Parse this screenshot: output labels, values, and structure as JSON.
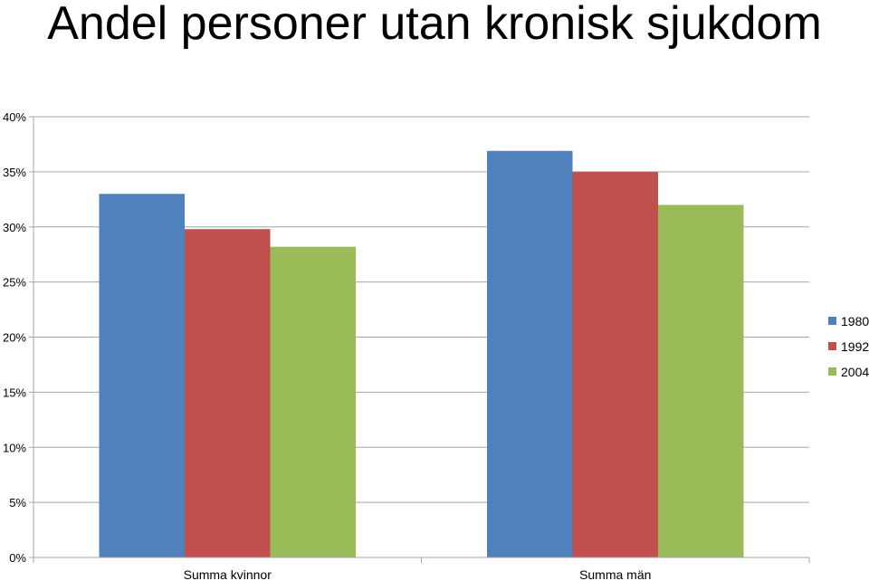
{
  "chart_data": {
    "type": "bar",
    "title": "Andel personer utan kronisk sjukdom",
    "xlabel": "",
    "ylabel": "",
    "categories": [
      "Summa kvinnor",
      "Summa män"
    ],
    "series": [
      {
        "name": "1980",
        "values": [
          0.33,
          0.369
        ],
        "color": "#4F81BD"
      },
      {
        "name": "1992",
        "values": [
          0.298,
          0.35
        ],
        "color": "#C0504D"
      },
      {
        "name": "2004",
        "values": [
          0.282,
          0.32
        ],
        "color": "#9BBB59"
      }
    ],
    "ylim": [
      0,
      0.4
    ],
    "yticks": [
      {
        "value": 0,
        "label": "0%"
      },
      {
        "value": 0.05,
        "label": "5%"
      },
      {
        "value": 0.1,
        "label": "10%"
      },
      {
        "value": 0.15,
        "label": "15%"
      },
      {
        "value": 0.2,
        "label": "20%"
      },
      {
        "value": 0.25,
        "label": "25%"
      },
      {
        "value": 0.3,
        "label": "30%"
      },
      {
        "value": 0.35,
        "label": "35%"
      },
      {
        "value": 0.4,
        "label": "40%"
      }
    ],
    "grid": true,
    "legend_position": "right",
    "gridline_color": "#A6A6A6",
    "axis_color": "#A6A6A6"
  }
}
